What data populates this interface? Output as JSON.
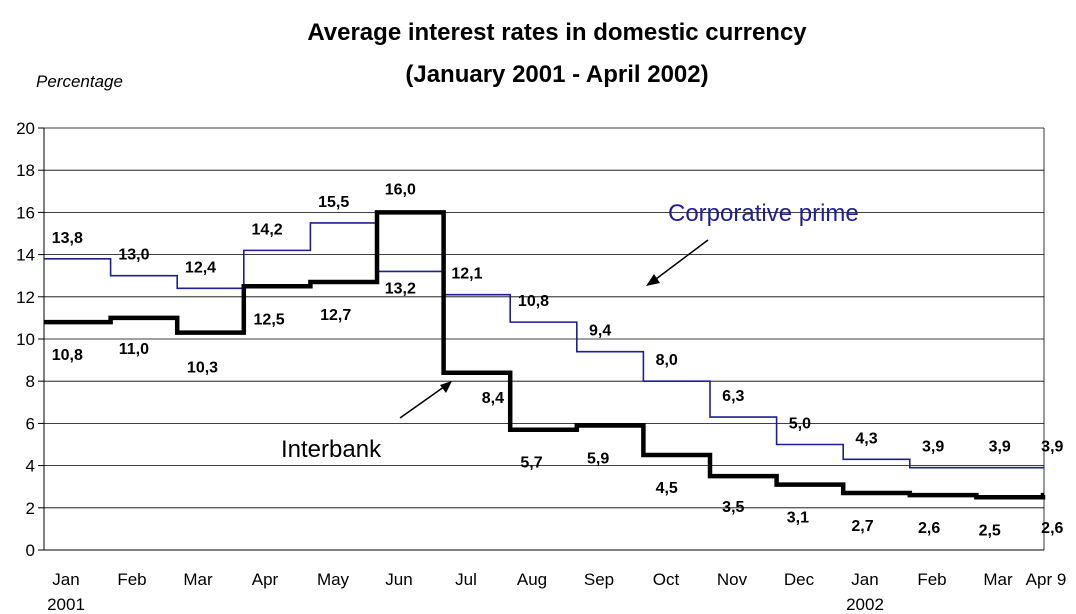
{
  "chart_data": {
    "type": "line",
    "step": true,
    "title": "Average interest rates in domestic currency",
    "subtitle": "(January 2001 - April 2002)",
    "ylabel": "Percentage",
    "ylim": [
      0,
      20
    ],
    "yticks": [
      0,
      2,
      4,
      6,
      8,
      10,
      12,
      14,
      16,
      18,
      20
    ],
    "grid": true,
    "x_ticks": [
      {
        "label": "Jan",
        "sublabel": "2001"
      },
      {
        "label": "Feb",
        "sublabel": ""
      },
      {
        "label": "Mar",
        "sublabel": ""
      },
      {
        "label": "Apr",
        "sublabel": ""
      },
      {
        "label": "May",
        "sublabel": ""
      },
      {
        "label": "Jun",
        "sublabel": ""
      },
      {
        "label": "Jul",
        "sublabel": ""
      },
      {
        "label": "Aug",
        "sublabel": ""
      },
      {
        "label": "Sep",
        "sublabel": ""
      },
      {
        "label": "Oct",
        "sublabel": ""
      },
      {
        "label": "Nov",
        "sublabel": ""
      },
      {
        "label": "Dec",
        "sublabel": ""
      },
      {
        "label": "Jan",
        "sublabel": "2002"
      },
      {
        "label": "Feb",
        "sublabel": ""
      },
      {
        "label": "Mar",
        "sublabel": ""
      },
      {
        "label": "Apr 9",
        "sublabel": ""
      }
    ],
    "series": [
      {
        "name": "Interbank",
        "color": "#000000",
        "values": [
          10.8,
          11.0,
          10.3,
          12.5,
          12.7,
          16.0,
          8.4,
          5.7,
          5.9,
          4.5,
          3.5,
          3.1,
          2.7,
          2.6,
          2.5,
          2.6
        ],
        "labels": [
          "10,8",
          "11,0",
          "10,3",
          "12,5",
          "12,7",
          "16,0",
          "8,4",
          "5,7",
          "5,9",
          "4,5",
          "3,5",
          "3,1",
          "2,7",
          "2,6",
          "2,5",
          "2,6"
        ]
      },
      {
        "name": "Corporative prime",
        "color": "#1f1f8f",
        "values": [
          13.8,
          13.0,
          12.4,
          14.2,
          15.5,
          13.2,
          12.1,
          10.8,
          9.4,
          8.0,
          6.3,
          5.0,
          4.3,
          3.9,
          3.9,
          3.9
        ],
        "labels": [
          "13,8",
          "13,0",
          "12,4",
          "14,2",
          "15,5",
          "13,2",
          "12,1",
          "10,8",
          "9,4",
          "8,0",
          "6,3",
          "5,0",
          "4,3",
          "3,9",
          "3,9",
          "3,9"
        ]
      }
    ]
  }
}
